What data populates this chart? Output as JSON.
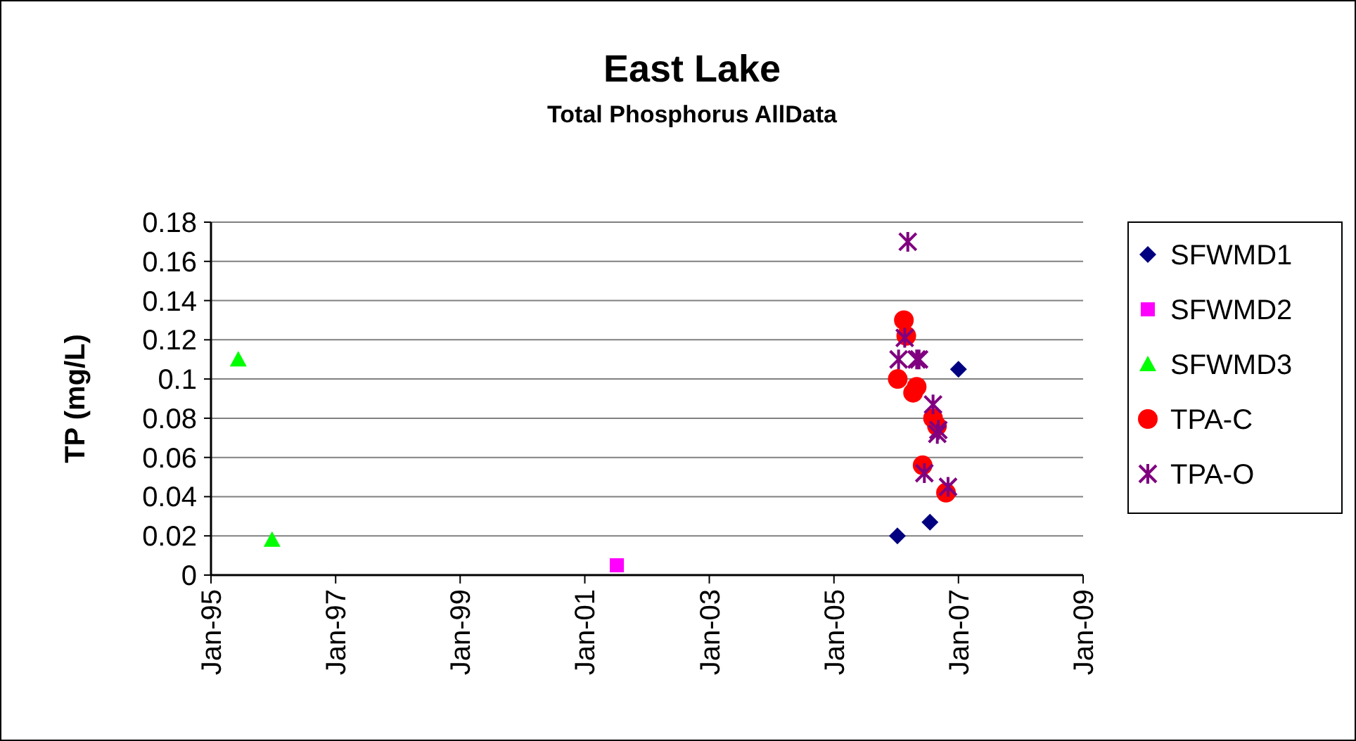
{
  "chart_data": {
    "type": "scatter",
    "title": "East Lake",
    "subtitle": "Total Phosphorus AllData",
    "ylabel": "TP (mg/L)",
    "xlim": [
      "1995-01-01",
      "2009-01-01"
    ],
    "xticks": [
      {
        "value": "1995-01-01",
        "label": "Jan-95"
      },
      {
        "value": "1997-01-01",
        "label": "Jan-97"
      },
      {
        "value": "1999-01-01",
        "label": "Jan-99"
      },
      {
        "value": "2001-01-01",
        "label": "Jan-01"
      },
      {
        "value": "2003-01-01",
        "label": "Jan-03"
      },
      {
        "value": "2005-01-01",
        "label": "Jan-05"
      },
      {
        "value": "2007-01-01",
        "label": "Jan-07"
      },
      {
        "value": "2009-01-01",
        "label": "Jan-09"
      }
    ],
    "ylim": [
      0,
      0.18
    ],
    "yticks": [
      0,
      0.02,
      0.04,
      0.06,
      0.08,
      0.1,
      0.12,
      0.14,
      0.16,
      0.18
    ],
    "grid": "y",
    "legend": "right",
    "series": [
      {
        "name": "SFWMD1",
        "color": "#000080",
        "marker": "diamond",
        "x": [
          "2006-01-08",
          "2006-07-18",
          "2007-01-01"
        ],
        "values": [
          0.02,
          0.027,
          0.105
        ]
      },
      {
        "name": "SFWMD2",
        "color": "#ff00ff",
        "marker": "square",
        "x": [
          "2001-07-08"
        ],
        "values": [
          0.005
        ]
      },
      {
        "name": "SFWMD3",
        "color": "#00ff00",
        "marker": "triangle",
        "x": [
          "1995-06-10",
          "1995-12-25"
        ],
        "values": [
          0.11,
          0.018
        ]
      },
      {
        "name": "TPA-C",
        "color": "#ff0000",
        "marker": "circle",
        "x": [
          "2006-02-15",
          "2006-03-01",
          "2006-01-10",
          "2006-04-10",
          "2006-05-01",
          "2006-08-05",
          "2006-08-28",
          "2006-06-05",
          "2006-10-20"
        ],
        "values": [
          0.13,
          0.122,
          0.1,
          0.093,
          0.096,
          0.08,
          0.076,
          0.056,
          0.042
        ]
      },
      {
        "name": "TPA-O",
        "color": "#800080",
        "marker": "cross",
        "x": [
          "2006-03-10",
          "2006-02-20",
          "2006-01-15",
          "2006-05-01",
          "2006-05-15",
          "2006-08-05",
          "2006-08-30",
          "2006-09-05",
          "2006-06-15",
          "2006-11-01"
        ],
        "values": [
          0.17,
          0.121,
          0.11,
          0.11,
          0.11,
          0.087,
          0.072,
          0.074,
          0.052,
          0.045
        ]
      }
    ]
  }
}
